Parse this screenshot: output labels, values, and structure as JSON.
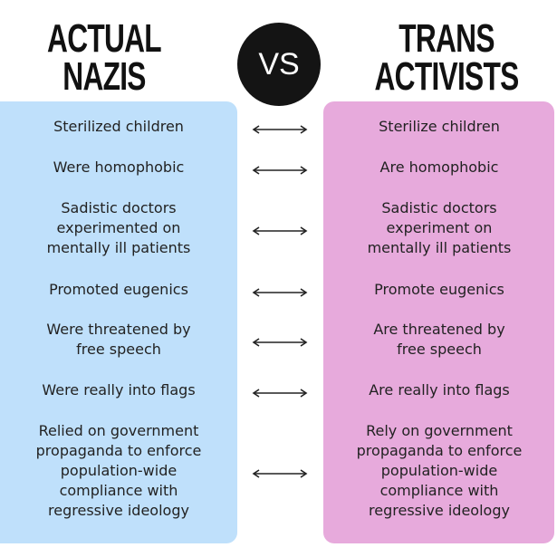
{
  "header": {
    "left": [
      "ACTUAL",
      "NAZIS"
    ],
    "vs": "VS",
    "right": [
      "TRANS",
      "ACTIVISTS"
    ]
  },
  "rows": [
    {
      "left": [
        "Sterilized children"
      ],
      "right": [
        "Sterilize children"
      ]
    },
    {
      "left": [
        "Were homophobic"
      ],
      "right": [
        "Are homophobic"
      ]
    },
    {
      "left": [
        "Sadistic doctors",
        "experimented on",
        "mentally ill patients"
      ],
      "right": [
        "Sadistic doctors",
        "experiment on",
        "mentally ill patients"
      ]
    },
    {
      "left": [
        "Promoted eugenics"
      ],
      "right": [
        "Promote eugenics"
      ]
    },
    {
      "left": [
        "Were threatened by",
        "free speech"
      ],
      "right": [
        "Are threatened by",
        "free speech"
      ]
    },
    {
      "left": [
        "Were really into flags"
      ],
      "right": [
        "Are really into flags"
      ]
    },
    {
      "left": [
        "Relied on government",
        "propaganda to enforce",
        "population-wide",
        "compliance with",
        "regressive ideology"
      ],
      "right": [
        "Rely on government",
        "propaganda to enforce",
        "population-wide",
        "compliance with",
        "regressive ideology"
      ]
    }
  ]
}
